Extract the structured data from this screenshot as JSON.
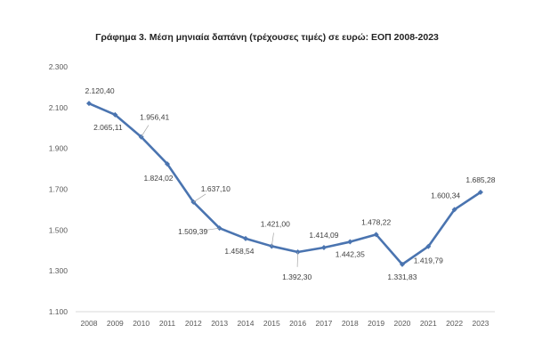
{
  "chart_data": {
    "type": "line",
    "title": "Γράφημα 3. Μέση μηνιαία δαπάνη (τρέχουσες τιμές) σε ευρώ: ΕΟΠ 2008-2023",
    "xlabel": "",
    "ylabel": "",
    "categories": [
      "2008",
      "2009",
      "2010",
      "2011",
      "2012",
      "2013",
      "2014",
      "2015",
      "2016",
      "2017",
      "2018",
      "2019",
      "2020",
      "2021",
      "2022",
      "2023"
    ],
    "values": [
      2120.4,
      2065.11,
      1956.41,
      1824.02,
      1637.1,
      1509.39,
      1458.54,
      1421.0,
      1392.3,
      1414.09,
      1442.35,
      1478.22,
      1331.83,
      1419.79,
      1600.34,
      1685.28
    ],
    "data_labels": [
      "2.120,40",
      "2.065,11",
      "1.956,41",
      "1.824,02",
      "1.637,10",
      "1.509,39",
      "1.458,54",
      "1.421,00",
      "1.392,30",
      "1.414,09",
      "1.442,35",
      "1.478,22",
      "1.331,83",
      "1.419,79",
      "1.600,34",
      "1.685,28"
    ],
    "ylim": [
      1100,
      2300
    ],
    "yticks": [
      1100,
      1300,
      1500,
      1700,
      1900,
      2100,
      2300
    ],
    "ytick_labels": [
      "1.100",
      "1.300",
      "1.500",
      "1.700",
      "1.900",
      "2.100",
      "2.300"
    ],
    "grid": false,
    "legend": "none",
    "color": "#4a74b0"
  }
}
